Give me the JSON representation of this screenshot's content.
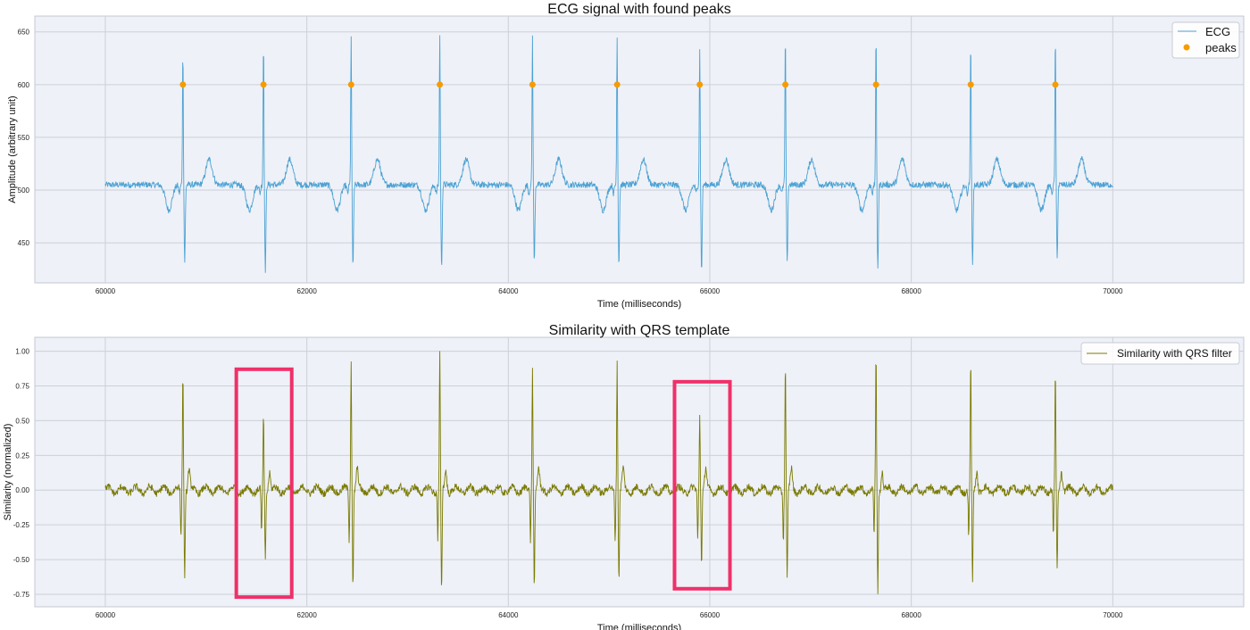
{
  "chart_data": [
    {
      "type": "line",
      "title": "ECG signal with found peaks",
      "xlabel": "Time (milliseconds)",
      "ylabel": "Amplitude (arbitrary unit)",
      "xlim": [
        59300,
        71300
      ],
      "ylim": [
        412,
        665
      ],
      "x_ticks": [
        60000,
        62000,
        64000,
        66000,
        68000,
        70000
      ],
      "y_ticks": [
        450,
        500,
        550,
        600,
        650
      ],
      "grid": true,
      "legend_position": "top-right",
      "beats_ms": [
        60770,
        61570,
        62440,
        63320,
        64240,
        65080,
        65900,
        66750,
        67650,
        68590,
        69430
      ],
      "series": [
        {
          "name": "ECG",
          "kind": "line",
          "color": "#4ca2d4",
          "x_range": [
            60000,
            70000
          ],
          "baseline": 505,
          "r_peaks": [
            633,
            642,
            645,
            648,
            646,
            648,
            633,
            648,
            648,
            640,
            648
          ],
          "s_troughs": [
            432,
            424,
            427,
            426,
            432,
            430,
            422,
            430,
            427,
            432,
            435
          ]
        },
        {
          "name": "peaks",
          "kind": "scatter",
          "color": "#f59c00",
          "x": [
            60770,
            61570,
            62440,
            63320,
            64240,
            65080,
            65900,
            66750,
            67650,
            68590,
            69430
          ],
          "y": [
            600,
            600,
            600,
            600,
            600,
            600,
            600,
            600,
            600,
            600,
            600
          ]
        }
      ]
    },
    {
      "type": "line",
      "title": "Similarity with QRS template",
      "xlabel": "Time (milliseconds)",
      "ylabel": "Similarity (normalized)",
      "xlim": [
        59300,
        71300
      ],
      "ylim": [
        -0.84,
        1.1
      ],
      "x_ticks": [
        60000,
        62000,
        64000,
        66000,
        68000,
        70000
      ],
      "y_ticks": [
        -0.75,
        -0.5,
        -0.25,
        0.0,
        0.25,
        0.5,
        0.75,
        1.0
      ],
      "grid": true,
      "legend_position": "top-right",
      "series": [
        {
          "name": "Similarity with QRS filter",
          "kind": "line",
          "color": "#7a7a00",
          "x_range": [
            60000,
            70000
          ],
          "x": [
            60770,
            61570,
            62440,
            63320,
            64240,
            65080,
            65900,
            66750,
            67650,
            68590,
            69430
          ],
          "peak": [
            0.89,
            0.53,
            0.96,
            1.0,
            0.92,
            0.95,
            0.56,
            0.95,
            1.0,
            0.93,
            0.85
          ],
          "trough": [
            -0.59,
            -0.51,
            -0.68,
            -0.75,
            -0.68,
            -0.65,
            -0.51,
            -0.65,
            -0.72,
            -0.66,
            -0.59
          ]
        }
      ],
      "highlights": [
        {
          "x0": 61300,
          "x1": 61850,
          "y0": -0.77,
          "y1": 0.87,
          "color": "#f0306a"
        },
        {
          "x0": 65650,
          "x1": 66200,
          "y0": -0.71,
          "y1": 0.78,
          "color": "#f0306a"
        }
      ]
    }
  ]
}
